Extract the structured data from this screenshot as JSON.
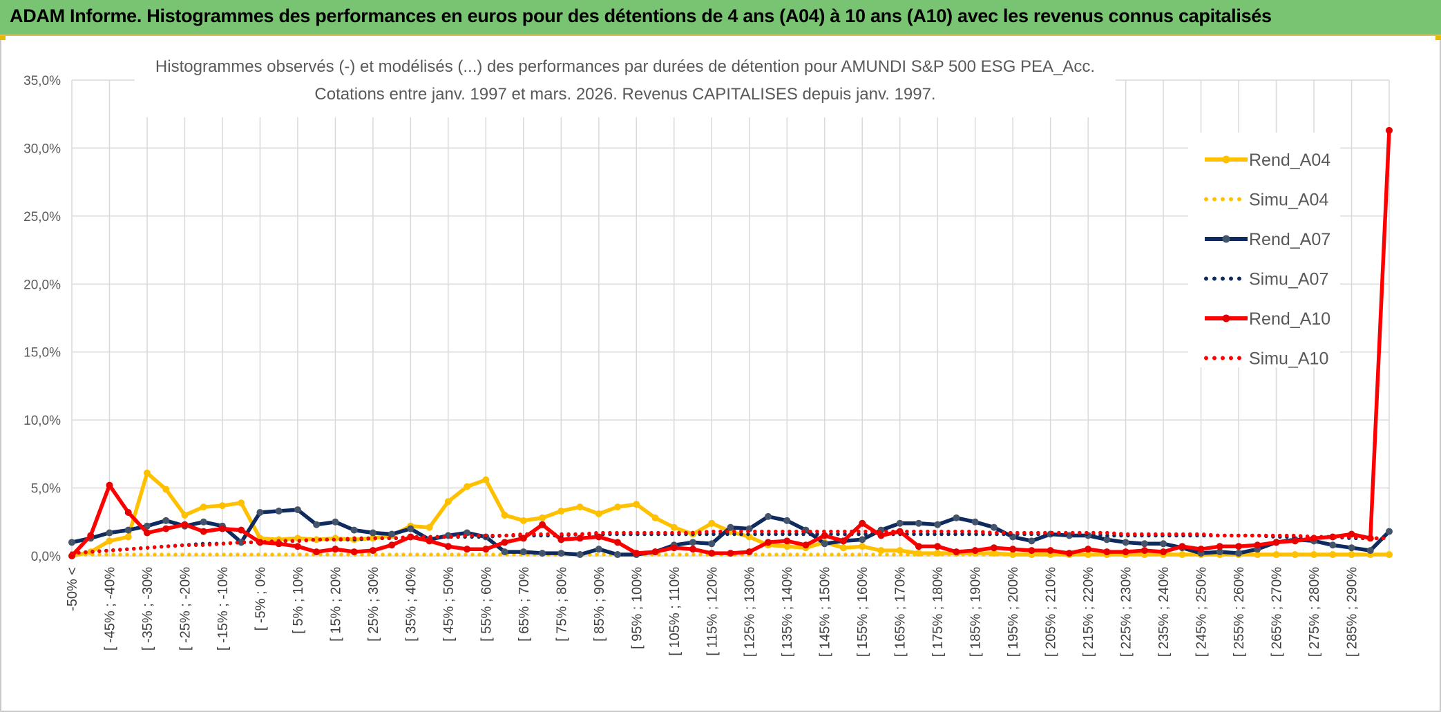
{
  "banner": {
    "title": "ADAM Informe. Histogrammes des performances en euros pour des détentions de 4 ans (A04) à 10 ans (A10) avec les revenus connus capitalisés"
  },
  "colors": {
    "banner_bg": "#79c472",
    "a04": "#ffc000",
    "a07": "#0e2a5e",
    "a07_marker": "#44546a",
    "a10": "#ff0000",
    "a10_marker": "#e60000"
  },
  "chart_data": {
    "type": "line",
    "title": "Histogrammes observés (-) et modélisés (...) des performances par durées de détention pour AMUNDI S&P 500 ESG PEA_Acc.",
    "subtitle": "Cotations entre janv. 1997 et mars. 2026. Revenus CAPITALISES depuis janv. 1997.",
    "xlabel": "",
    "ylabel": "",
    "ylim": [
      0,
      35
    ],
    "yticks": [
      "0,0%",
      "5,0%",
      "10,0%",
      "15,0%",
      "20,0%",
      "25,0%",
      "30,0%",
      "35,0%"
    ],
    "grid": true,
    "legend_position": "right",
    "tick_categories": [
      "-50% <",
      "[ -45% ; -40%",
      "[ -35% ; -30%",
      "[ -25% ; -20%",
      "[ -15% ; -10%",
      "[ -5% ; 0%",
      "[ 5% ; 10%",
      "[ 15% ; 20%",
      "[ 25% ; 30%",
      "[ 35% ; 40%",
      "[ 45% ; 50%",
      "[ 55% ; 60%",
      "[ 65% ; 70%",
      "[ 75% ; 80%",
      "[ 85% ; 90%",
      "[ 95% ; 100%",
      "[ 105% ; 110%",
      "[ 115% ; 120%",
      "[ 125% ; 130%",
      "[ 135% ; 140%",
      "[ 145% ; 150%",
      "[ 155% ; 160%",
      "[ 165% ; 170%",
      "[ 175% ; 180%",
      "[ 185% ; 190%",
      "[ 195% ; 200%",
      "[ 205% ; 210%",
      "[ 215% ; 220%",
      "[ 225% ; 230%",
      "[ 235% ; 240%",
      "[ 245% ; 250%",
      "[ 255% ; 260%",
      "[ 265% ; 270%",
      "[ 275% ; 280%",
      "[ 285% ; 290%"
    ],
    "series": [
      {
        "name": "Rend_A04",
        "style": "solid",
        "color": "#ffc000",
        "values": [
          0.0,
          0.3,
          1.1,
          1.4,
          6.1,
          4.9,
          3.0,
          3.6,
          3.7,
          3.9,
          1.3,
          1.2,
          1.3,
          1.2,
          1.3,
          1.2,
          1.3,
          1.5,
          2.2,
          2.1,
          4.0,
          5.1,
          5.6,
          3.0,
          2.6,
          2.8,
          3.3,
          3.6,
          3.1,
          3.6,
          3.8,
          2.8,
          2.1,
          1.6,
          2.4,
          1.8,
          1.4,
          0.8,
          0.7,
          0.6,
          1.0,
          0.6,
          0.7,
          0.4,
          0.4,
          0.2,
          0.2,
          0.2,
          0.2,
          0.2,
          0.1,
          0.1,
          0.1,
          0.1,
          0.1,
          0.1,
          0.1,
          0.1,
          0.1,
          0.1,
          0.1,
          0.1,
          0.1,
          0.1,
          0.1,
          0.1,
          0.1,
          0.1,
          0.1,
          0.1,
          0.1
        ]
      },
      {
        "name": "Simu_A04",
        "style": "dotted",
        "color": "#ffc000",
        "values": [
          0.1,
          0.1,
          0.1,
          0.1,
          0.1,
          0.1,
          0.1,
          0.1,
          0.1,
          0.1,
          0.1,
          0.1,
          0.1,
          0.1,
          0.1,
          0.1,
          0.1,
          0.1,
          0.1,
          0.1,
          0.1,
          0.1,
          0.1,
          0.1,
          0.1,
          0.1,
          0.1,
          0.1,
          0.1,
          0.1,
          0.1,
          0.1,
          0.1,
          0.1,
          0.1,
          0.1,
          0.1,
          0.1,
          0.1,
          0.1,
          0.1,
          0.1,
          0.1,
          0.1,
          0.1,
          0.1,
          0.1,
          0.1,
          0.1,
          0.1,
          0.1,
          0.1,
          0.1,
          0.1,
          0.1,
          0.1,
          0.1,
          0.1,
          0.1,
          0.1,
          0.1,
          0.1,
          0.1,
          0.1,
          0.1,
          0.1,
          0.1,
          0.1,
          0.1,
          0.1,
          0.1
        ]
      },
      {
        "name": "Rend_A07",
        "style": "solid",
        "color": "#0e2a5e",
        "values": [
          1.0,
          1.3,
          1.7,
          1.9,
          2.2,
          2.6,
          2.2,
          2.5,
          2.2,
          1.0,
          3.2,
          3.3,
          3.4,
          2.3,
          2.5,
          1.9,
          1.7,
          1.6,
          2.0,
          1.2,
          1.5,
          1.7,
          1.4,
          0.3,
          0.3,
          0.2,
          0.2,
          0.1,
          0.5,
          0.1,
          0.1,
          0.3,
          0.8,
          1.0,
          0.9,
          2.1,
          2.0,
          2.9,
          2.6,
          1.9,
          0.9,
          1.1,
          1.2,
          1.9,
          2.4,
          2.4,
          2.3,
          2.8,
          2.5,
          2.1,
          1.4,
          1.1,
          1.6,
          1.5,
          1.5,
          1.2,
          1.0,
          0.9,
          0.9,
          0.6,
          0.2,
          0.3,
          0.2,
          0.5,
          1.0,
          1.2,
          1.1,
          0.8,
          0.6,
          0.4,
          1.8
        ]
      },
      {
        "name": "Simu_A07",
        "style": "dotted",
        "color": "#0e2a5e",
        "values": [
          0.2,
          0.3,
          0.4,
          0.5,
          0.6,
          0.7,
          0.8,
          0.9,
          0.9,
          1.0,
          1.0,
          1.1,
          1.1,
          1.2,
          1.2,
          1.2,
          1.3,
          1.3,
          1.3,
          1.4,
          1.4,
          1.4,
          1.4,
          1.5,
          1.5,
          1.5,
          1.5,
          1.6,
          1.6,
          1.6,
          1.6,
          1.6,
          1.6,
          1.6,
          1.6,
          1.6,
          1.6,
          1.6,
          1.6,
          1.6,
          1.6,
          1.6,
          1.6,
          1.6,
          1.6,
          1.6,
          1.6,
          1.6,
          1.6,
          1.6,
          1.6,
          1.6,
          1.6,
          1.6,
          1.6,
          1.5,
          1.5,
          1.5,
          1.5,
          1.5,
          1.5,
          1.5,
          1.5,
          1.5,
          1.4,
          1.4,
          1.4,
          1.4,
          1.3,
          1.3,
          1.3
        ]
      },
      {
        "name": "Rend_A10",
        "style": "solid",
        "color": "#ff0000",
        "values": [
          0.0,
          1.5,
          5.2,
          3.2,
          1.7,
          2.0,
          2.3,
          1.8,
          2.0,
          1.9,
          1.0,
          0.9,
          0.7,
          0.3,
          0.5,
          0.3,
          0.4,
          0.8,
          1.4,
          1.1,
          0.7,
          0.5,
          0.5,
          1.0,
          1.3,
          2.3,
          1.2,
          1.3,
          1.4,
          1.0,
          0.2,
          0.3,
          0.6,
          0.5,
          0.2,
          0.2,
          0.3,
          1.0,
          1.1,
          0.8,
          1.5,
          1.1,
          2.4,
          1.5,
          1.8,
          0.7,
          0.7,
          0.3,
          0.4,
          0.6,
          0.5,
          0.4,
          0.4,
          0.2,
          0.5,
          0.3,
          0.3,
          0.4,
          0.3,
          0.7,
          0.5,
          0.7,
          0.7,
          0.8,
          1.0,
          1.1,
          1.3,
          1.4,
          1.6,
          1.3,
          31.3
        ]
      },
      {
        "name": "Simu_A10",
        "style": "dotted",
        "color": "#ff0000",
        "values": [
          0.2,
          0.3,
          0.4,
          0.5,
          0.6,
          0.7,
          0.8,
          0.8,
          0.9,
          1.0,
          1.0,
          1.1,
          1.1,
          1.2,
          1.2,
          1.3,
          1.3,
          1.3,
          1.4,
          1.4,
          1.4,
          1.5,
          1.5,
          1.5,
          1.6,
          1.6,
          1.6,
          1.6,
          1.7,
          1.7,
          1.7,
          1.7,
          1.7,
          1.7,
          1.8,
          1.8,
          1.8,
          1.8,
          1.8,
          1.8,
          1.8,
          1.8,
          1.8,
          1.8,
          1.8,
          1.8,
          1.8,
          1.8,
          1.8,
          1.7,
          1.7,
          1.7,
          1.7,
          1.7,
          1.7,
          1.7,
          1.6,
          1.6,
          1.6,
          1.6,
          1.6,
          1.5,
          1.5,
          1.5,
          1.5,
          1.5,
          1.4,
          1.4,
          1.4,
          1.3,
          1.3
        ]
      }
    ]
  }
}
